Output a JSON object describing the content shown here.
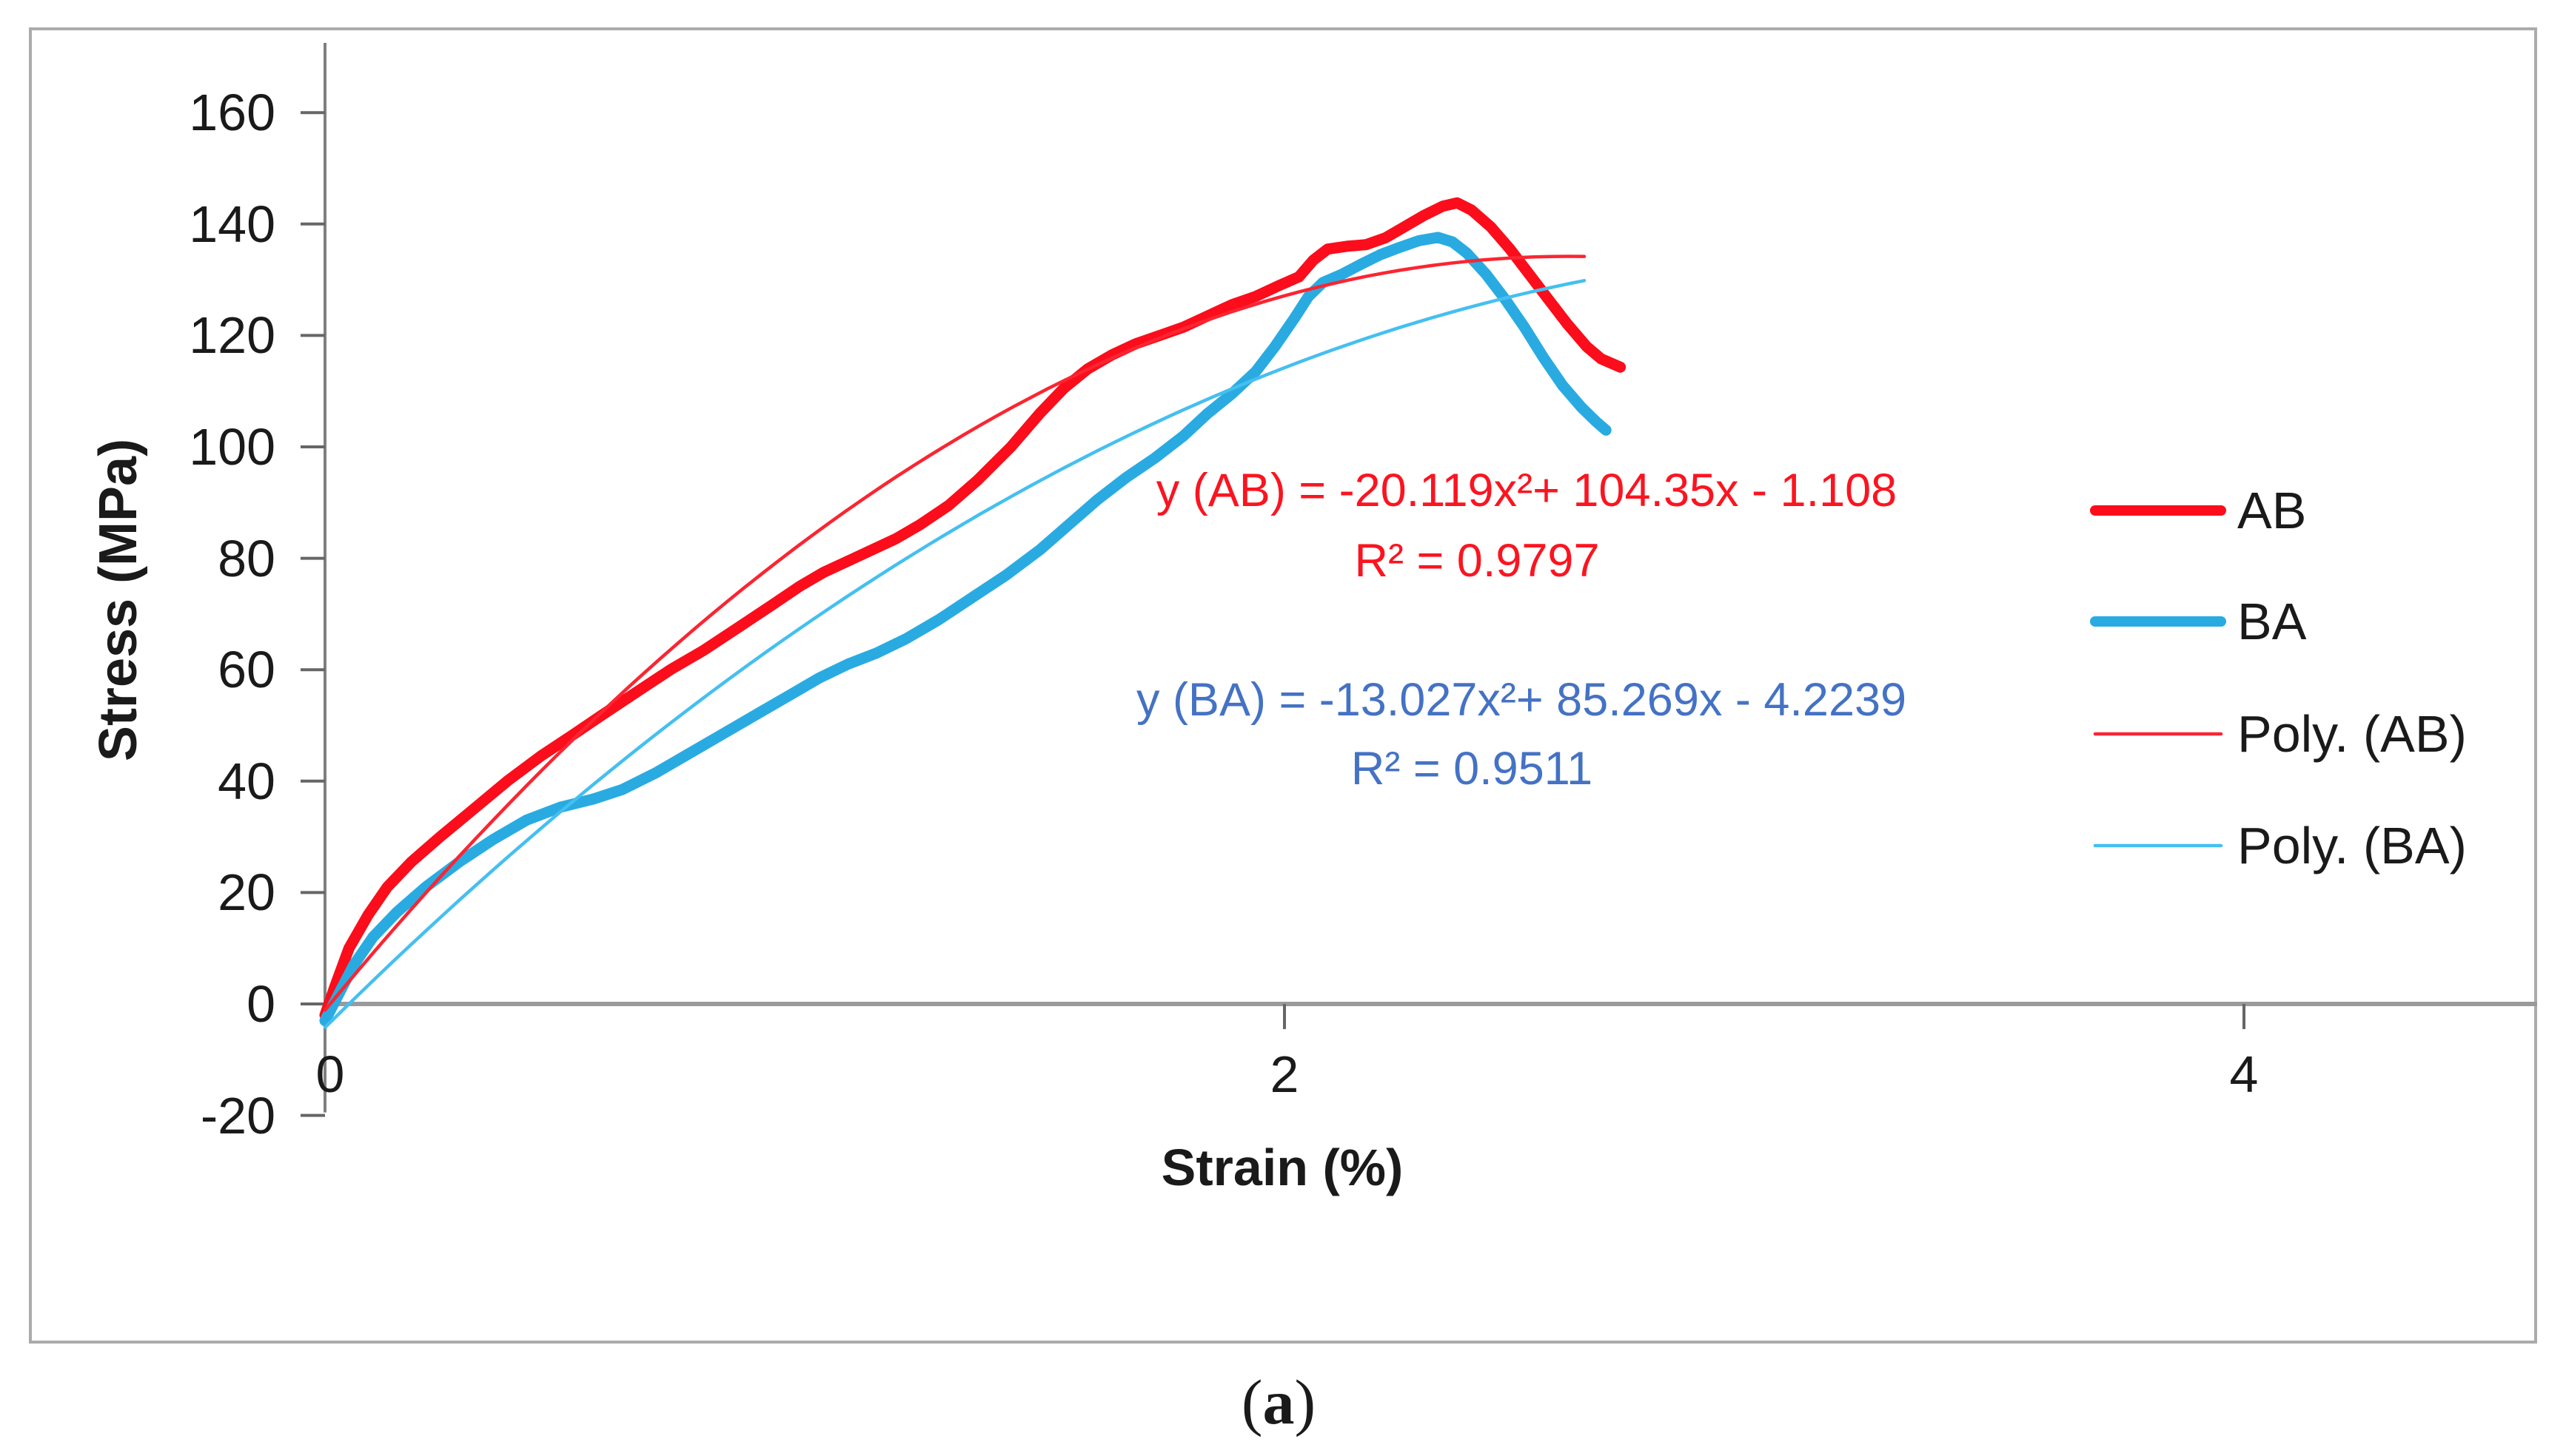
{
  "figure": {
    "caption": {
      "prefix": "(",
      "letter": "a",
      "suffix": ")"
    }
  },
  "chart_data": {
    "type": "line",
    "title": "",
    "xlabel": "Strain (%)",
    "ylabel": "Stress (MPa)",
    "xlim": [
      0,
      4.6
    ],
    "ylim": [
      -20,
      160
    ],
    "x_ticks": [
      0,
      2,
      4
    ],
    "y_ticks": [
      160,
      140,
      120,
      100,
      80,
      60,
      40,
      20,
      0,
      -20
    ],
    "grid": false,
    "legend_position": "right",
    "legend": [
      {
        "name": "AB",
        "color": "#fb0d1b",
        "thick": true
      },
      {
        "name": "BA",
        "color": "#29abe2",
        "thick": true
      },
      {
        "name": "Poly. (AB)",
        "color": "#fb2531",
        "thick": false
      },
      {
        "name": "Poly. (BA)",
        "color": "#45bff0",
        "thick": false
      }
    ],
    "series": [
      {
        "name": "AB",
        "kind": "measured",
        "color": "#fb0d1b",
        "width": 15,
        "points": [
          [
            0,
            -2
          ],
          [
            0.02,
            3
          ],
          [
            0.05,
            10
          ],
          [
            0.09,
            16
          ],
          [
            0.13,
            21
          ],
          [
            0.18,
            25.5
          ],
          [
            0.24,
            30
          ],
          [
            0.31,
            35
          ],
          [
            0.38,
            40
          ],
          [
            0.45,
            44.5
          ],
          [
            0.52,
            48.5
          ],
          [
            0.58,
            52
          ],
          [
            0.65,
            56
          ],
          [
            0.72,
            60
          ],
          [
            0.79,
            63.5
          ],
          [
            0.86,
            67.5
          ],
          [
            0.93,
            71.5
          ],
          [
            0.99,
            75
          ],
          [
            1.04,
            77.5
          ],
          [
            1.09,
            79.5
          ],
          [
            1.14,
            81.5
          ],
          [
            1.19,
            83.5
          ],
          [
            1.24,
            86
          ],
          [
            1.3,
            89.5
          ],
          [
            1.36,
            94
          ],
          [
            1.43,
            100
          ],
          [
            1.49,
            106
          ],
          [
            1.54,
            110.5
          ],
          [
            1.59,
            114
          ],
          [
            1.64,
            116.5
          ],
          [
            1.69,
            118.5
          ],
          [
            1.74,
            120
          ],
          [
            1.79,
            121.5
          ],
          [
            1.84,
            123.5
          ],
          [
            1.89,
            125.5
          ],
          [
            1.94,
            127
          ],
          [
            1.99,
            129
          ],
          [
            2.03,
            130.5
          ],
          [
            2.06,
            133.5
          ],
          [
            2.09,
            135.5
          ],
          [
            2.13,
            136
          ],
          [
            2.17,
            136.3
          ],
          [
            2.21,
            137.5
          ],
          [
            2.25,
            139.5
          ],
          [
            2.29,
            141.5
          ],
          [
            2.33,
            143.2
          ],
          [
            2.36,
            143.8
          ],
          [
            2.39,
            142.5
          ],
          [
            2.43,
            139.5
          ],
          [
            2.47,
            135.5
          ],
          [
            2.51,
            131
          ],
          [
            2.55,
            126.5
          ],
          [
            2.59,
            122
          ],
          [
            2.63,
            118
          ],
          [
            2.66,
            115.8
          ],
          [
            2.7,
            114.3
          ]
        ]
      },
      {
        "name": "BA",
        "kind": "measured",
        "color": "#29abe2",
        "width": 15,
        "points": [
          [
            0,
            -3
          ],
          [
            0.03,
            2
          ],
          [
            0.06,
            7
          ],
          [
            0.1,
            12
          ],
          [
            0.15,
            16.5
          ],
          [
            0.21,
            21
          ],
          [
            0.28,
            25.5
          ],
          [
            0.35,
            29.5
          ],
          [
            0.42,
            33
          ],
          [
            0.49,
            35.3
          ],
          [
            0.56,
            36.8
          ],
          [
            0.62,
            38.5
          ],
          [
            0.69,
            41.5
          ],
          [
            0.76,
            45
          ],
          [
            0.83,
            48.5
          ],
          [
            0.9,
            52
          ],
          [
            0.97,
            55.5
          ],
          [
            1.03,
            58.5
          ],
          [
            1.09,
            61
          ],
          [
            1.15,
            63
          ],
          [
            1.21,
            65.5
          ],
          [
            1.28,
            69
          ],
          [
            1.35,
            73
          ],
          [
            1.42,
            77
          ],
          [
            1.49,
            81.5
          ],
          [
            1.55,
            86
          ],
          [
            1.61,
            90.5
          ],
          [
            1.67,
            94.5
          ],
          [
            1.73,
            98
          ],
          [
            1.79,
            102
          ],
          [
            1.84,
            106
          ],
          [
            1.89,
            109.5
          ],
          [
            1.94,
            113.5
          ],
          [
            1.98,
            118
          ],
          [
            2.02,
            123
          ],
          [
            2.05,
            127
          ],
          [
            2.08,
            129.5
          ],
          [
            2.12,
            131
          ],
          [
            2.16,
            132.8
          ],
          [
            2.2,
            134.5
          ],
          [
            2.24,
            135.8
          ],
          [
            2.28,
            137
          ],
          [
            2.32,
            137.6
          ],
          [
            2.35,
            136.8
          ],
          [
            2.38,
            134.8
          ],
          [
            2.42,
            131
          ],
          [
            2.46,
            126.5
          ],
          [
            2.5,
            121.5
          ],
          [
            2.54,
            116
          ],
          [
            2.58,
            111
          ],
          [
            2.62,
            107
          ],
          [
            2.65,
            104.5
          ],
          [
            2.67,
            103
          ]
        ]
      },
      {
        "name": "Poly. (AB)",
        "kind": "polyfit",
        "color": "#fb2531",
        "width": 4.5,
        "coeffs": [
          -20.119,
          104.35,
          -1.108
        ],
        "xrange": [
          0,
          2.655
        ]
      },
      {
        "name": "Poly. (BA)",
        "kind": "polyfit",
        "color": "#45bff0",
        "width": 4.5,
        "coeffs": [
          -13.027,
          85.269,
          -4.2239
        ],
        "xrange": [
          0,
          2.655
        ]
      }
    ],
    "annotations": [
      {
        "equation": "y (AB)  = -20.119x²+ 104.35x - 1.108",
        "r2": "R² = 0.9797",
        "color": "#fb1420"
      },
      {
        "equation": "y (BA) = -13.027x²+ 85.269x - 4.2239",
        "r2": "R² = 0.9511",
        "color": "#4472c4"
      }
    ],
    "axis_colors": {
      "axis_line": "#9a9a9a",
      "y_axis_line": "#7f7f7f",
      "tick": "#666666",
      "frame": "#ababab"
    }
  }
}
